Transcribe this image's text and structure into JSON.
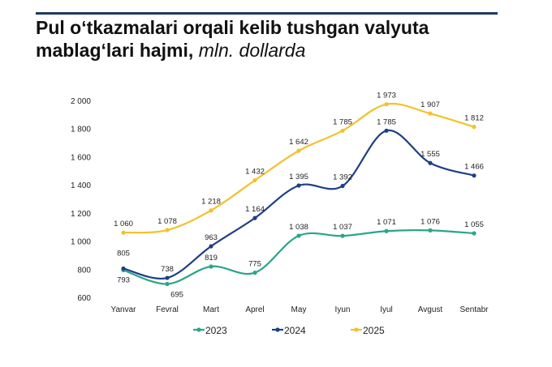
{
  "title": {
    "main_line1": "Pul o‘tkazmalari orqali kelib tushgan valyuta",
    "main_line2": "mablag‘lari hajmi,",
    "unit": "mln. dollarda"
  },
  "chart_data": {
    "type": "line",
    "title": "Pul o‘tkazmalari orqali kelib tushgan valyuta mablag‘lari hajmi, mln. dollarda",
    "xlabel": "",
    "ylabel": "",
    "categories": [
      "Yanvar",
      "Fevral",
      "Mart",
      "Aprel",
      "May",
      "Iyun",
      "Iyul",
      "Avgust",
      "Sentabr"
    ],
    "ylim": [
      600,
      2000
    ],
    "yticks": [
      600,
      800,
      1000,
      1200,
      1400,
      1600,
      1800,
      2000
    ],
    "ytick_labels": [
      "600",
      "800",
      "1 000",
      "1 200",
      "1 400",
      "1 600",
      "1 800",
      "2 000"
    ],
    "grid": false,
    "legend_position": "bottom",
    "series": [
      {
        "name": "2023",
        "color": "#2aa58a",
        "values": [
          793,
          695,
          819,
          775,
          1038,
          1037,
          1071,
          1076,
          1055
        ],
        "labels": [
          "793",
          "695",
          "819",
          "775",
          "1 038",
          "1 037",
          "1 071",
          "1 076",
          "1 055"
        ]
      },
      {
        "name": "2024",
        "color": "#1f3f84",
        "values": [
          805,
          738,
          963,
          1164,
          1395,
          1392,
          1785,
          1555,
          1466
        ],
        "labels": [
          "805",
          "738",
          "963",
          "1 164",
          "1 395",
          "1 392",
          "1 785",
          "1 555",
          "1 466"
        ]
      },
      {
        "name": "2025",
        "color": "#f4c12c",
        "values": [
          1060,
          1078,
          1218,
          1432,
          1642,
          1785,
          1973,
          1907,
          1812
        ],
        "labels": [
          "1 060",
          "1 078",
          "1 218",
          "1 432",
          "1 642",
          "1 785",
          "1 973",
          "1 907",
          "1 812"
        ]
      }
    ]
  }
}
